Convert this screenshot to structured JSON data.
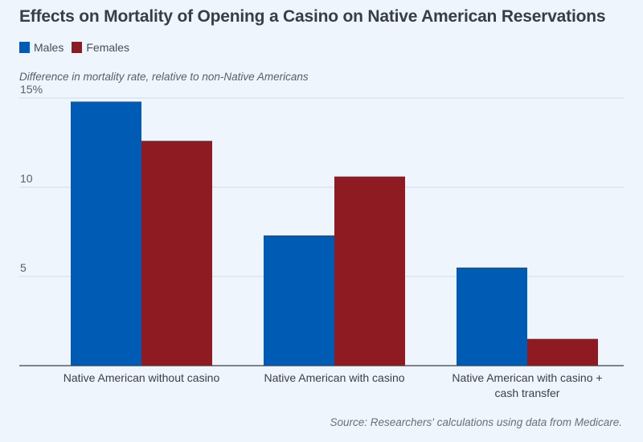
{
  "title": "Effects on Mortality of Opening a Casino on Native American Reservations",
  "legend": [
    {
      "label": "Males",
      "color": "#005bb5"
    },
    {
      "label": "Females",
      "color": "#8f1b22"
    }
  ],
  "ylabel": "Difference in mortality rate, relative to non-Native Americans",
  "source": "Source: Researchers' calculations using data from Medicare.",
  "chart_data": {
    "type": "bar",
    "title": "Effects on Mortality of Opening a Casino on Native American Reservations",
    "xlabel": "",
    "ylabel": "Difference in mortality rate, relative to non-Native Americans",
    "categories": [
      [
        "Native American without casino"
      ],
      [
        "Native American with casino"
      ],
      [
        "Native American with casino +",
        "cash transfer"
      ]
    ],
    "series": [
      {
        "name": "Males",
        "color": "#005bb5",
        "values": [
          14.8,
          7.3,
          5.5
        ]
      },
      {
        "name": "Females",
        "color": "#8f1b22",
        "values": [
          12.6,
          10.6,
          1.5
        ]
      }
    ],
    "ylim": [
      0,
      15
    ],
    "yticks": [
      5,
      10,
      15
    ],
    "ytick_labels": [
      "5",
      "10",
      "15%"
    ],
    "grid": true,
    "legend_position": "top-left"
  }
}
